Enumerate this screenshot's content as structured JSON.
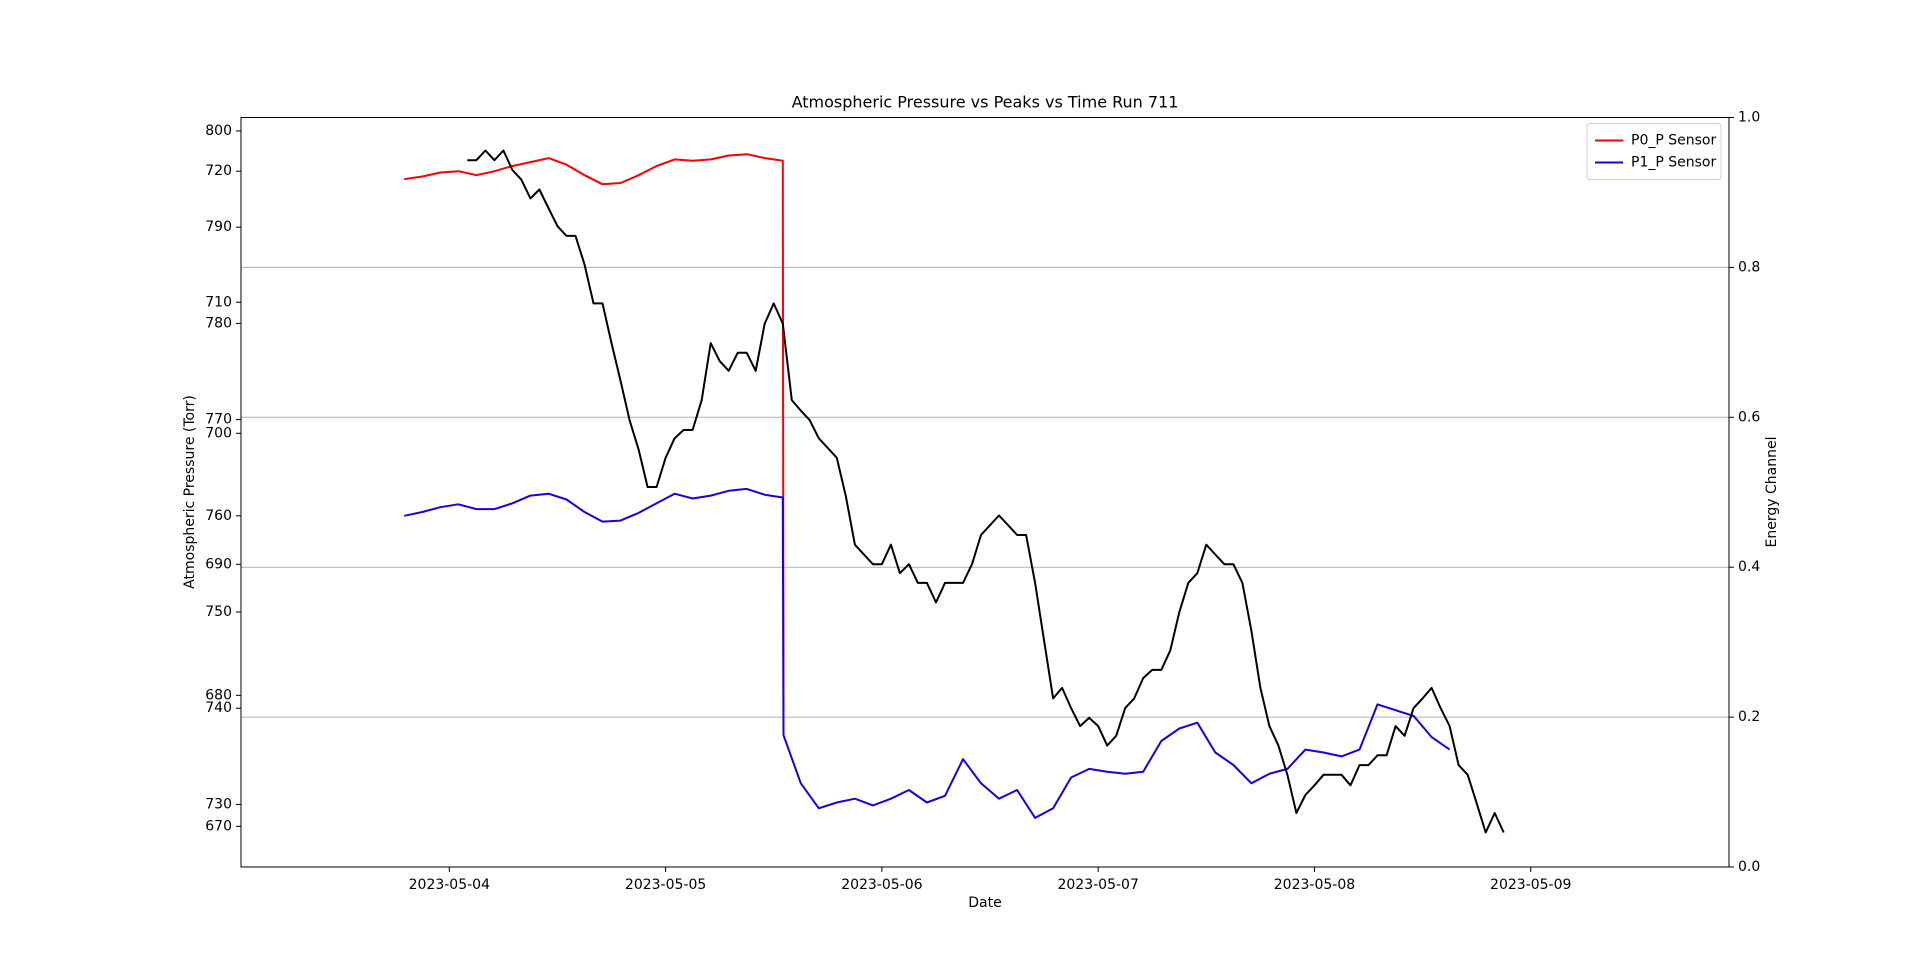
{
  "chart_data": {
    "type": "line",
    "title": "Atmospheric Pressure vs Peaks vs Time Run 711",
    "x_label": "Date",
    "y_label": "Atmospheric Pressure (Torr)",
    "y2_label": "Energy Channel",
    "xlim": [
      "2023-05-03T00:53",
      "2023-05-09T22:00"
    ],
    "xticks": [
      "2023-05-04",
      "2023-05-05",
      "2023-05-06",
      "2023-05-07",
      "2023-05-08",
      "2023-05-09"
    ],
    "ylim": [
      723.5,
      801.4
    ],
    "yticks": [
      730,
      740,
      750,
      760,
      770,
      780,
      790,
      800
    ],
    "y3lim": [
      666.9,
      724.1
    ],
    "y3ticks": [
      670,
      680,
      690,
      700,
      710,
      720
    ],
    "y2lim": [
      0,
      1
    ],
    "y2ticks": [
      {
        "value": 0,
        "label": "0.0"
      },
      0.2,
      0.4,
      0.6,
      0.8,
      {
        "value": 1,
        "label": "1.0"
      }
    ],
    "grid": "y2",
    "legend": "upper right",
    "series": [
      {
        "name": "P0_P Sensor",
        "color": "#ff0000",
        "axis": "y3",
        "x": [
          "2023-05-03T19:00",
          "2023-05-03T21:00",
          "2023-05-03T23:00",
          "2023-05-04T01:00",
          "2023-05-04T03:00",
          "2023-05-04T05:00",
          "2023-05-04T07:00",
          "2023-05-04T09:00",
          "2023-05-04T11:00",
          "2023-05-04T13:00",
          "2023-05-04T15:00",
          "2023-05-04T17:00",
          "2023-05-04T19:00",
          "2023-05-04T21:00",
          "2023-05-04T23:00",
          "2023-05-05T01:00",
          "2023-05-05T03:00",
          "2023-05-05T05:00",
          "2023-05-05T07:00",
          "2023-05-05T09:00",
          "2023-05-05T11:00",
          "2023-05-05T13:00",
          "2023-05-05T13:05"
        ],
        "values": [
          719.4,
          719.6,
          719.9,
          720.0,
          719.7,
          720.0,
          720.4,
          720.7,
          721.0,
          720.5,
          719.7,
          719.0,
          719.1,
          719.7,
          720.4,
          720.9,
          720.8,
          720.9,
          721.2,
          721.3,
          721.0,
          720.8,
          677.0
        ]
      },
      {
        "name": "P1_P Sensor",
        "color": "#1a00e0",
        "axis": "y",
        "x": [
          "2023-05-03T19:00",
          "2023-05-03T21:00",
          "2023-05-03T23:00",
          "2023-05-04T01:00",
          "2023-05-04T03:00",
          "2023-05-04T05:00",
          "2023-05-04T07:00",
          "2023-05-04T09:00",
          "2023-05-04T11:00",
          "2023-05-04T13:00",
          "2023-05-04T15:00",
          "2023-05-04T17:00",
          "2023-05-04T19:00",
          "2023-05-04T21:00",
          "2023-05-04T23:00",
          "2023-05-05T01:00",
          "2023-05-05T03:00",
          "2023-05-05T05:00",
          "2023-05-05T07:00",
          "2023-05-05T09:00",
          "2023-05-05T11:00",
          "2023-05-05T13:00",
          "2023-05-05T13:05",
          "2023-05-05T15:00",
          "2023-05-05T17:00",
          "2023-05-05T19:00",
          "2023-05-05T21:00",
          "2023-05-05T23:00",
          "2023-05-06T01:00",
          "2023-05-06T03:00",
          "2023-05-06T05:00",
          "2023-05-06T07:00",
          "2023-05-06T09:00",
          "2023-05-06T11:00",
          "2023-05-06T13:00",
          "2023-05-06T15:00",
          "2023-05-06T17:00",
          "2023-05-06T19:00",
          "2023-05-06T21:00",
          "2023-05-06T23:00",
          "2023-05-07T01:00",
          "2023-05-07T03:00",
          "2023-05-07T05:00",
          "2023-05-07T07:00",
          "2023-05-07T09:00",
          "2023-05-07T11:00",
          "2023-05-07T13:00",
          "2023-05-07T15:00",
          "2023-05-07T17:00",
          "2023-05-07T19:00",
          "2023-05-07T21:00",
          "2023-05-07T23:00",
          "2023-05-08T01:00",
          "2023-05-08T03:00",
          "2023-05-08T05:00",
          "2023-05-08T07:00",
          "2023-05-08T09:00",
          "2023-05-08T11:00",
          "2023-05-08T13:00",
          "2023-05-08T15:00"
        ],
        "values": [
          760.0,
          760.4,
          760.9,
          761.2,
          760.7,
          760.7,
          761.3,
          762.1,
          762.3,
          761.7,
          760.4,
          759.4,
          759.5,
          760.3,
          761.3,
          762.3,
          761.8,
          762.1,
          762.6,
          762.8,
          762.2,
          761.9,
          737.2,
          732.2,
          729.6,
          730.2,
          730.6,
          729.9,
          730.6,
          731.5,
          730.2,
          730.9,
          734.7,
          732.2,
          730.6,
          731.5,
          728.6,
          729.6,
          732.8,
          733.7,
          733.4,
          733.2,
          733.4,
          736.6,
          737.9,
          738.5,
          735.4,
          734.1,
          732.2,
          733.2,
          733.7,
          735.7,
          735.4,
          735.0,
          735.7,
          740.4,
          739.8,
          739.2,
          737.0,
          735.7
        ]
      },
      {
        "color": "#000000",
        "axis": "y2",
        "x": [
          "2023-05-04T02:00",
          "2023-05-04T03:00",
          "2023-05-04T04:00",
          "2023-05-04T05:00",
          "2023-05-04T06:00",
          "2023-05-04T07:00",
          "2023-05-04T08:00",
          "2023-05-04T09:00",
          "2023-05-04T10:00",
          "2023-05-04T11:00",
          "2023-05-04T12:00",
          "2023-05-04T13:00",
          "2023-05-04T14:00",
          "2023-05-04T15:00",
          "2023-05-04T16:00",
          "2023-05-04T17:00",
          "2023-05-04T18:00",
          "2023-05-04T19:00",
          "2023-05-04T20:00",
          "2023-05-04T21:00",
          "2023-05-04T22:00",
          "2023-05-04T23:00",
          "2023-05-05T00:00",
          "2023-05-05T01:00",
          "2023-05-05T02:00",
          "2023-05-05T03:00",
          "2023-05-05T04:00",
          "2023-05-05T05:00",
          "2023-05-05T06:00",
          "2023-05-05T07:00",
          "2023-05-05T08:00",
          "2023-05-05T09:00",
          "2023-05-05T10:00",
          "2023-05-05T11:00",
          "2023-05-05T12:00",
          "2023-05-05T13:00",
          "2023-05-05T14:00",
          "2023-05-05T15:00",
          "2023-05-05T16:00",
          "2023-05-05T17:00",
          "2023-05-05T18:00",
          "2023-05-05T19:00",
          "2023-05-05T20:00",
          "2023-05-05T21:00",
          "2023-05-05T22:00",
          "2023-05-05T23:00",
          "2023-05-06T00:00",
          "2023-05-06T01:00",
          "2023-05-06T02:00",
          "2023-05-06T03:00",
          "2023-05-06T04:00",
          "2023-05-06T05:00",
          "2023-05-06T06:00",
          "2023-05-06T07:00",
          "2023-05-06T08:00",
          "2023-05-06T09:00",
          "2023-05-06T10:00",
          "2023-05-06T11:00",
          "2023-05-06T12:00",
          "2023-05-06T13:00",
          "2023-05-06T14:00",
          "2023-05-06T15:00",
          "2023-05-06T16:00",
          "2023-05-06T17:00",
          "2023-05-06T18:00",
          "2023-05-06T19:00",
          "2023-05-06T20:00",
          "2023-05-06T21:00",
          "2023-05-06T22:00",
          "2023-05-06T23:00",
          "2023-05-07T00:00",
          "2023-05-07T01:00",
          "2023-05-07T02:00",
          "2023-05-07T03:00",
          "2023-05-07T04:00",
          "2023-05-07T05:00",
          "2023-05-07T06:00",
          "2023-05-07T07:00",
          "2023-05-07T08:00",
          "2023-05-07T09:00",
          "2023-05-07T10:00",
          "2023-05-07T11:00",
          "2023-05-07T12:00",
          "2023-05-07T13:00",
          "2023-05-07T14:00",
          "2023-05-07T15:00",
          "2023-05-07T16:00",
          "2023-05-07T17:00",
          "2023-05-07T18:00",
          "2023-05-07T19:00",
          "2023-05-07T20:00",
          "2023-05-07T21:00",
          "2023-05-07T22:00",
          "2023-05-07T23:00",
          "2023-05-08T00:00",
          "2023-05-08T01:00",
          "2023-05-08T02:00",
          "2023-05-08T03:00",
          "2023-05-08T04:00",
          "2023-05-08T05:00",
          "2023-05-08T06:00",
          "2023-05-08T07:00",
          "2023-05-08T08:00",
          "2023-05-08T09:00",
          "2023-05-08T10:00",
          "2023-05-08T11:00",
          "2023-05-08T12:00",
          "2023-05-08T13:00",
          "2023-05-08T14:00",
          "2023-05-08T15:00",
          "2023-05-08T16:00",
          "2023-05-08T17:00",
          "2023-05-08T18:00",
          "2023-05-08T19:00",
          "2023-05-08T20:00",
          "2023-05-08T21:00"
        ],
        "values": [
          0.943,
          0.943,
          0.956,
          0.943,
          0.956,
          0.93,
          0.917,
          0.892,
          0.904,
          0.879,
          0.855,
          0.842,
          0.842,
          0.804,
          0.752,
          0.752,
          0.699,
          0.649,
          0.596,
          0.557,
          0.507,
          0.507,
          0.546,
          0.572,
          0.583,
          0.583,
          0.623,
          0.699,
          0.675,
          0.662,
          0.686,
          0.686,
          0.662,
          0.725,
          0.752,
          0.725,
          0.623,
          0.609,
          0.596,
          0.572,
          0.559,
          0.546,
          0.495,
          0.43,
          0.417,
          0.404,
          0.404,
          0.43,
          0.392,
          0.404,
          0.379,
          0.379,
          0.353,
          0.379,
          0.379,
          0.379,
          0.404,
          0.443,
          0.456,
          0.469,
          0.456,
          0.443,
          0.443,
          0.379,
          0.302,
          0.225,
          0.239,
          0.212,
          0.188,
          0.199,
          0.188,
          0.162,
          0.175,
          0.212,
          0.225,
          0.252,
          0.263,
          0.263,
          0.289,
          0.34,
          0.379,
          0.392,
          0.43,
          0.417,
          0.404,
          0.404,
          0.379,
          0.315,
          0.239,
          0.188,
          0.162,
          0.123,
          0.072,
          0.096,
          0.109,
          0.123,
          0.123,
          0.123,
          0.109,
          0.136,
          0.136,
          0.149,
          0.149,
          0.188,
          0.175,
          0.212,
          0.225,
          0.239,
          0.212,
          0.188,
          0.136,
          0.123,
          0.085,
          0.046,
          0.072,
          0.046
        ]
      }
    ]
  }
}
